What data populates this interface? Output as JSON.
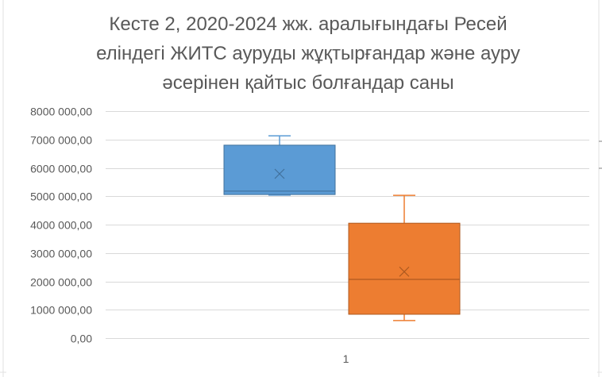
{
  "chart_data": {
    "type": "box",
    "title_lines": [
      "Кесте 2, 2020-2024 жж. аралығындағы Ресей",
      "еліндегі ЖИТС ауруды жұқтырғандар және ауру",
      "әсерінен қайтыс болғандар саны"
    ],
    "categories": [
      "1"
    ],
    "ylim": [
      0,
      8000000
    ],
    "ytick_values": [
      0,
      1000000,
      2000000,
      3000000,
      4000000,
      5000000,
      6000000,
      7000000,
      8000000
    ],
    "ytick_labels": [
      "0,00",
      "1000 000,00",
      "2000 000,00",
      "3000 000,00",
      "4000 000,00",
      "5000 000,00",
      "6000 000,00",
      "7000 000,00",
      "8000 000,00"
    ],
    "grid": true,
    "series": [
      {
        "color": "#5b9bd5",
        "stroke": "#41719c",
        "min": 5040000,
        "q1": 5060000,
        "median": 5180000,
        "q3": 6800000,
        "max": 7130000,
        "mean": 5790000
      },
      {
        "color": "#ed7d31",
        "stroke": "#ae5a21",
        "min": 620000,
        "q1": 840000,
        "median": 2070000,
        "q3": 4050000,
        "max": 5030000,
        "mean": 2340000
      }
    ]
  }
}
